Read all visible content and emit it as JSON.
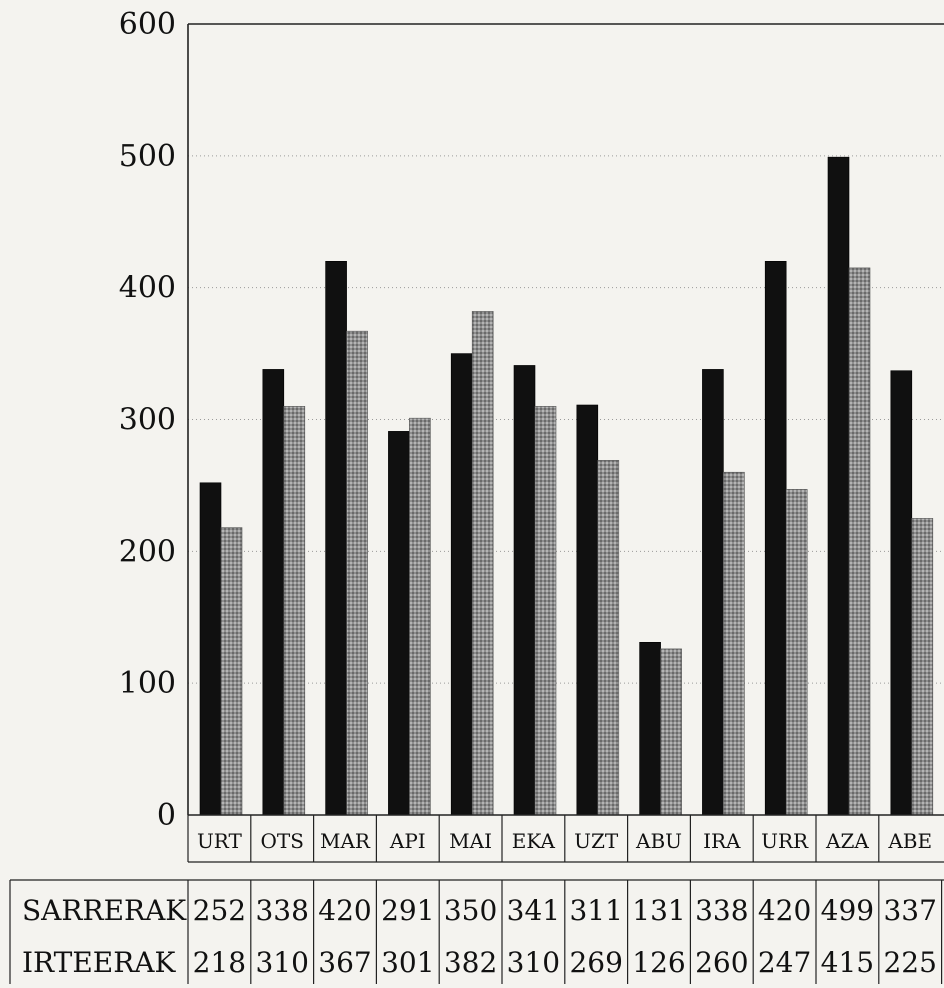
{
  "chart_data": {
    "type": "bar",
    "categories": [
      "URT",
      "OTS",
      "MAR",
      "API",
      "MAI",
      "EKA",
      "UZT",
      "ABU",
      "IRA",
      "URR",
      "AZA",
      "ABE"
    ],
    "series": [
      {
        "name": "SARRERAK",
        "values": [
          252,
          338,
          420,
          291,
          350,
          341,
          311,
          131,
          338,
          420,
          499,
          337
        ],
        "color": "#101010"
      },
      {
        "name": "IRTEERAK",
        "values": [
          218,
          310,
          367,
          301,
          382,
          310,
          269,
          126,
          260,
          247,
          415,
          225
        ],
        "color": "#8a8a8a"
      }
    ],
    "ylim": [
      0,
      600
    ],
    "yticks": [
      0,
      100,
      200,
      300,
      400,
      500,
      600
    ],
    "grid": true,
    "title": "",
    "xlabel": "",
    "ylabel": "",
    "table": {
      "rows": [
        {
          "label": "SARRERAK",
          "values": [
            "252",
            "338",
            "420",
            "291",
            "350",
            "341",
            "311",
            "131",
            "338",
            "420",
            "499",
            "337"
          ]
        },
        {
          "label": "IRTEERAK",
          "values": [
            "218",
            "310",
            "367",
            "301",
            "382",
            "310",
            "269",
            "126",
            "260",
            "247",
            "415",
            "225"
          ]
        }
      ]
    }
  }
}
